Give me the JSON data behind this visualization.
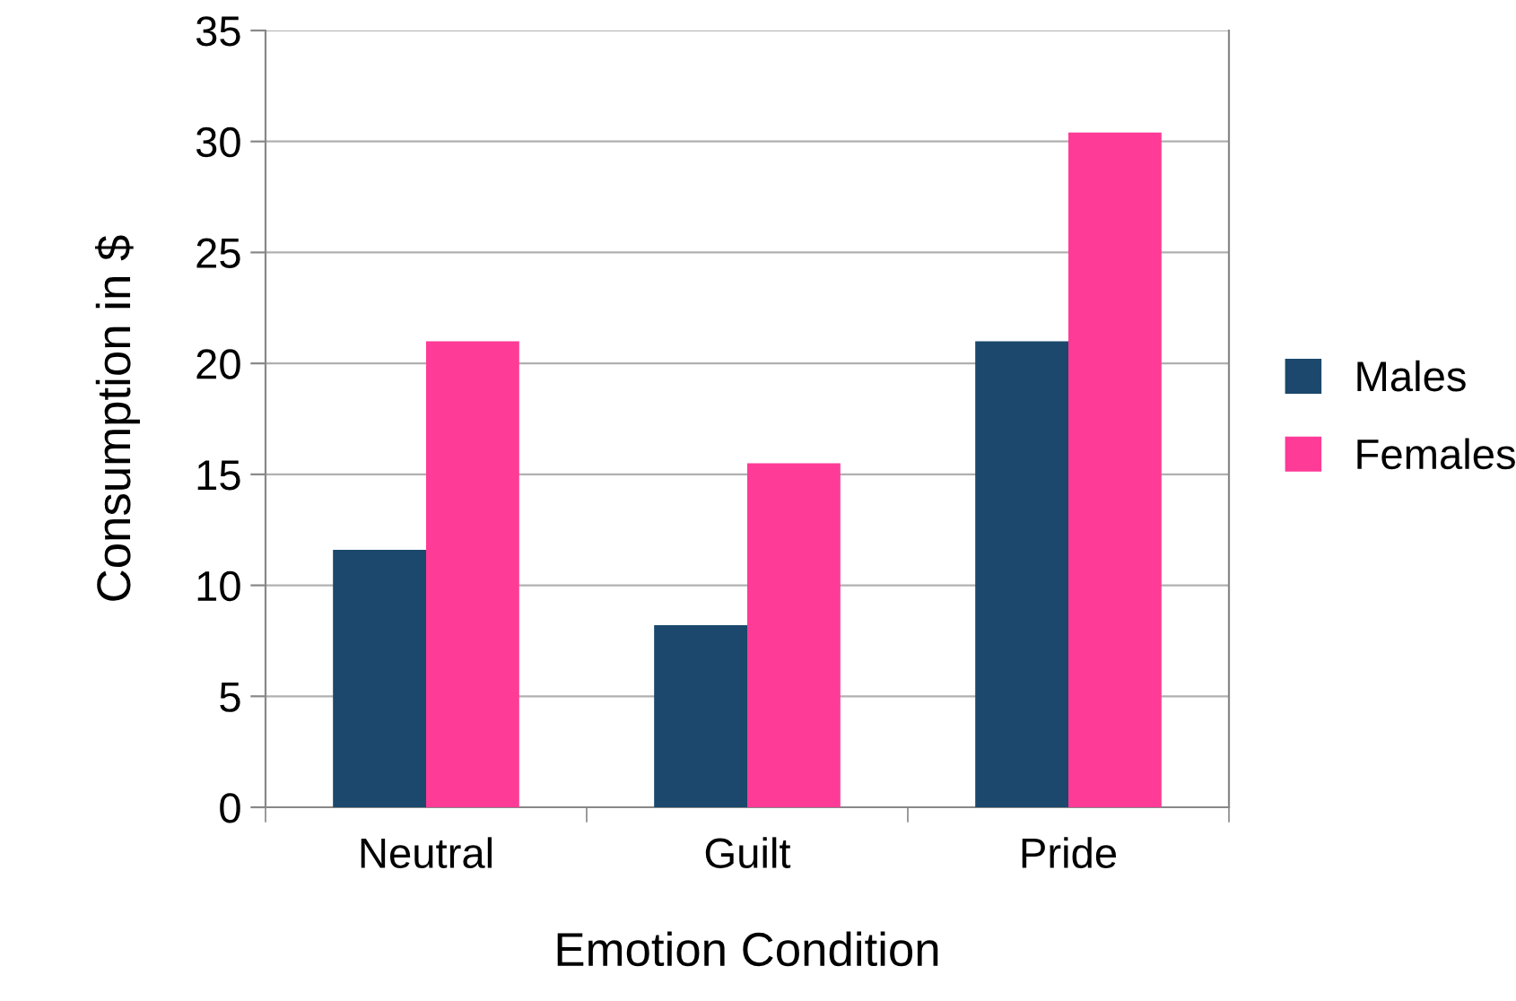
{
  "chart_data": {
    "type": "bar",
    "xlabel": "Emotion Condition",
    "ylabel": "Consumption in $",
    "categories": [
      "Neutral",
      "Guilt",
      "Pride"
    ],
    "series": [
      {
        "name": "Males",
        "color": "#1b486c",
        "values": [
          11.6,
          8.2,
          21.0
        ]
      },
      {
        "name": "Females",
        "color": "#fe3b97",
        "values": [
          21.0,
          15.5,
          30.4
        ]
      }
    ],
    "ylim": [
      0,
      35
    ],
    "yticks": [
      0,
      5,
      10,
      15,
      20,
      25,
      30,
      35
    ],
    "grid": "y",
    "legend": "right"
  }
}
